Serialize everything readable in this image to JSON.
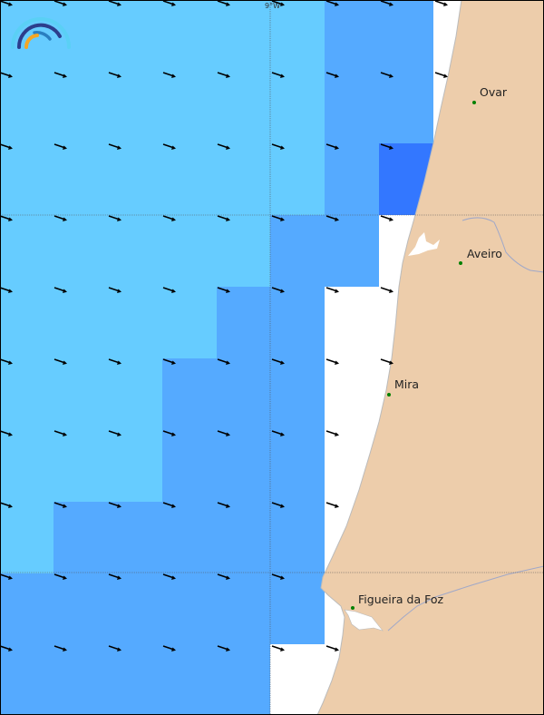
{
  "map": {
    "colors": {
      "level_light": "#66CCFF",
      "level_medium": "#55AAFF",
      "level_dark": "#3377FF",
      "land": "#EDCDAB",
      "sea_nodata": "#FFFFFF",
      "arrow": "#000000",
      "city_dot": "#008000",
      "river": "#A0A8C8"
    },
    "gridline_label": "9°W",
    "cell_levels": [
      [
        "light",
        "light",
        "light",
        "light",
        "light",
        "light",
        "medium",
        "medium"
      ],
      [
        "light",
        "light",
        "light",
        "light",
        "light",
        "light",
        "medium",
        "medium"
      ],
      [
        "light",
        "light",
        "light",
        "light",
        "light",
        "light",
        "medium",
        "dark"
      ],
      [
        "light",
        "light",
        "light",
        "light",
        "light",
        "medium",
        "medium",
        null
      ],
      [
        "light",
        "light",
        "light",
        "light",
        "medium",
        "medium",
        null,
        null
      ],
      [
        "light",
        "light",
        "light",
        "medium",
        "medium",
        "medium",
        null,
        null
      ],
      [
        "light",
        "light",
        "light",
        "medium",
        "medium",
        "medium",
        null,
        null
      ],
      [
        "light",
        "medium",
        "medium",
        "medium",
        "medium",
        "medium",
        null,
        null
      ],
      [
        "medium",
        "medium",
        "medium",
        "medium",
        "medium",
        "medium",
        null,
        null
      ],
      [
        "medium",
        "medium",
        "medium",
        "medium",
        "medium",
        null,
        null,
        null
      ]
    ],
    "arrow_direction": "east-southeast",
    "cities": [
      {
        "name": "Ovar"
      },
      {
        "name": "Aveiro"
      },
      {
        "name": "Mira"
      },
      {
        "name": "Figueira da Foz"
      }
    ]
  }
}
